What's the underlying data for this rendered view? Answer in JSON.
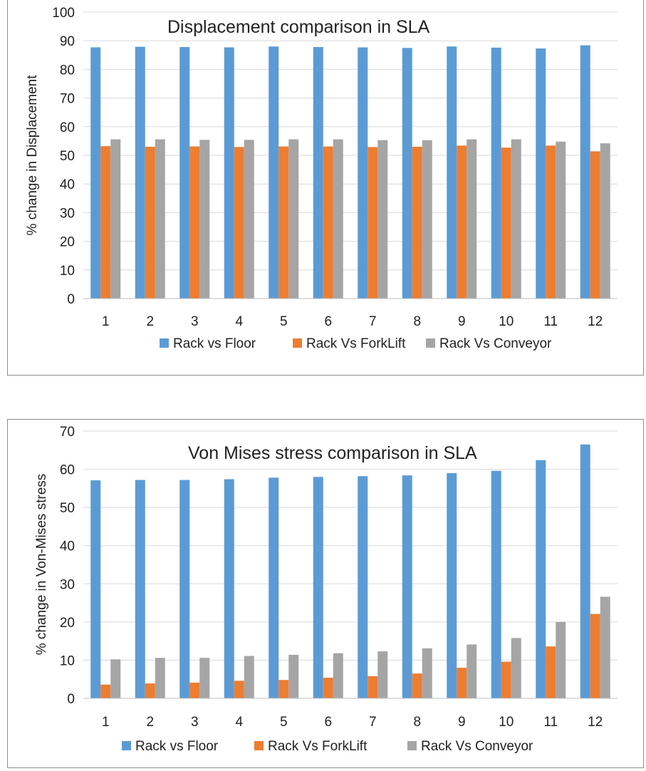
{
  "chart_data": [
    {
      "type": "bar",
      "title": "Displacement comparison in SLA",
      "xlabel": "",
      "ylabel": "% change in Displacement",
      "ylim": [
        0,
        100
      ],
      "yticks": [
        0,
        10,
        20,
        30,
        40,
        50,
        60,
        70,
        80,
        90,
        100
      ],
      "categories": [
        "1",
        "2",
        "3",
        "4",
        "5",
        "6",
        "7",
        "8",
        "9",
        "10",
        "11",
        "12"
      ],
      "grid": true,
      "legend_position": "bottom",
      "series": [
        {
          "name": "Rack vs Floor",
          "color": "#5b9bd5",
          "values": [
            87.7,
            87.9,
            87.8,
            87.7,
            88.0,
            87.8,
            87.7,
            87.5,
            88.0,
            87.6,
            87.3,
            88.4
          ]
        },
        {
          "name": "Rack Vs ForkLift",
          "color": "#ed7d31",
          "values": [
            53.2,
            53.0,
            53.1,
            52.9,
            53.1,
            53.1,
            52.9,
            53.0,
            53.4,
            52.7,
            53.4,
            51.4
          ]
        },
        {
          "name": "Rack Vs Conveyor",
          "color": "#a5a5a5",
          "values": [
            55.6,
            55.6,
            55.4,
            55.4,
            55.6,
            55.6,
            55.3,
            55.3,
            55.6,
            55.6,
            54.8,
            54.2
          ]
        }
      ]
    },
    {
      "type": "bar",
      "title": "Von Mises stress comparison in SLA",
      "xlabel": "",
      "ylabel": "% change in Von-Mises stress",
      "ylim": [
        0,
        70
      ],
      "yticks": [
        0,
        10,
        20,
        30,
        40,
        50,
        60,
        70
      ],
      "categories": [
        "1",
        "2",
        "3",
        "4",
        "5",
        "6",
        "7",
        "8",
        "9",
        "10",
        "11",
        "12"
      ],
      "grid": true,
      "legend_position": "bottom",
      "series": [
        {
          "name": "Rack vs Floor",
          "color": "#5b9bd5",
          "values": [
            57.1,
            57.2,
            57.2,
            57.4,
            57.8,
            58.0,
            58.2,
            58.4,
            59.0,
            59.6,
            62.4,
            66.5
          ]
        },
        {
          "name": "Rack Vs ForkLift",
          "color": "#ed7d31",
          "values": [
            3.6,
            3.9,
            4.1,
            4.6,
            4.8,
            5.4,
            5.8,
            6.5,
            8.0,
            9.6,
            13.6,
            22.1
          ]
        },
        {
          "name": "Rack Vs Conveyor",
          "color": "#a5a5a5",
          "values": [
            10.2,
            10.6,
            10.6,
            11.1,
            11.4,
            11.8,
            12.3,
            13.1,
            14.1,
            15.8,
            20.0,
            26.6
          ]
        }
      ]
    }
  ]
}
